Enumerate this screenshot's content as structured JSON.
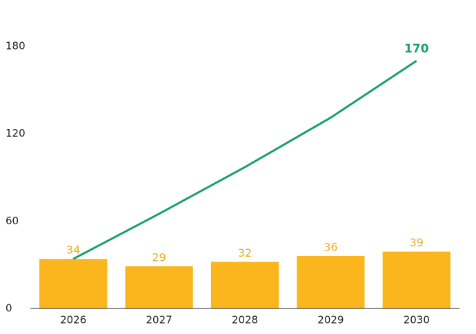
{
  "chart_data": {
    "type": "combo",
    "categories": [
      "2026",
      "2027",
      "2028",
      "2029",
      "2030"
    ],
    "series": [
      {
        "type": "bar",
        "color": "#fbb61d",
        "label_color": "#e8ae1c",
        "data_labels": "all",
        "values": [
          34,
          29,
          32,
          36,
          39
        ]
      },
      {
        "type": "line",
        "color": "#17a06b",
        "data_labels": "last",
        "values": [
          34,
          65,
          97,
          131,
          170
        ]
      }
    ],
    "ylim": [
      0,
      180
    ],
    "yticks": [
      0,
      60,
      120,
      180
    ],
    "grid": false
  }
}
